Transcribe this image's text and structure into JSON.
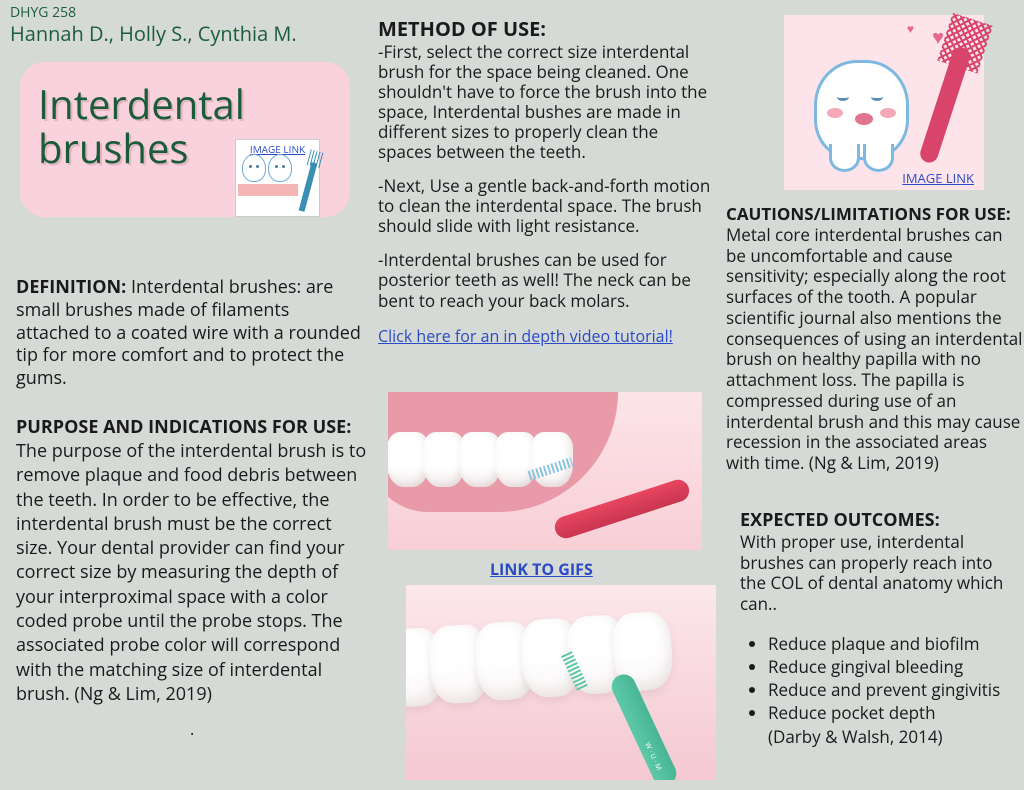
{
  "header": {
    "courseCode": "DHYG 258",
    "authors": "Hannah D., Holly S., Cynthia M."
  },
  "titleCard": {
    "title": "Interdental brushes",
    "imageLink": "IMAGE LINK",
    "cardBg": "#fad2dd",
    "titleColor": "#1a5c3a"
  },
  "definition": {
    "heading": "DEFINITION:",
    "text": "  Interdental brushes: are small brushes made of filaments attached to a coated wire with a rounded tip for more comfort and to protect the gums."
  },
  "purpose": {
    "heading": "PURPOSE AND INDICATIONS FOR USE:",
    "text": "The purpose of the interdental brush is to remove plaque and food debris between the teeth. In order to be effective, the interdental brush must be the correct size. Your dental provider can find your correct size by measuring the depth of your interproximal space with a color coded probe until the probe stops. The associated probe color will correspond with the matching size of interdental brush. (Ng & Lim, 2019)"
  },
  "method": {
    "heading": "METHOD OF USE:",
    "para1": "-First, select the correct size interdental brush for the space being cleaned.  One shouldn't have to force the brush into the space, Interdental bushes are made in different sizes to properly clean the spaces between the teeth.",
    "para2": "-Next, Use a gentle back-and-forth motion to clean the interdental space. The brush should slide with light resistance.",
    "para3": "-Interdental brushes can be used for posterior teeth as well! The neck can be bent to reach your back molars.",
    "videoLink": "Click here for an in depth video tutorial!"
  },
  "gifsLink": "LINK TO GIFS",
  "topRightImage": {
    "link": "IMAGE LINK",
    "bg": "#fce4ea"
  },
  "cautions": {
    "heading": "CAUTIONS/LIMITATIONS FOR USE:",
    "text": " Metal core interdental brushes can be uncomfortable and cause sensitivity; especially along the root surfaces of the tooth. A popular scientific journal also mentions the consequences of using an interdental brush on healthy papilla with no attachment loss. The papilla is compressed during use of an interdental brush and this may cause recession in the associated areas with time. (Ng & Lim, 2019)"
  },
  "outcomes": {
    "heading": "EXPECTED OUTCOMES:",
    "intro": "With proper use, interdental brushes can properly reach into the COL of dental anatomy which can..",
    "items": [
      "Reduce plaque and biofilm",
      "Reduce gingival bleeding",
      "Reduce and prevent gingivitis",
      "Reduce pocket depth"
    ],
    "citation": "(Darby & Walsh, 2014)"
  },
  "colors": {
    "pageBg": "#d6dad6",
    "heading": "#1a5c3a",
    "link": "#2a4bc7",
    "pink": "#fad2dd",
    "brushRed": "#e84560",
    "brushGreen": "#5dc9a8"
  }
}
